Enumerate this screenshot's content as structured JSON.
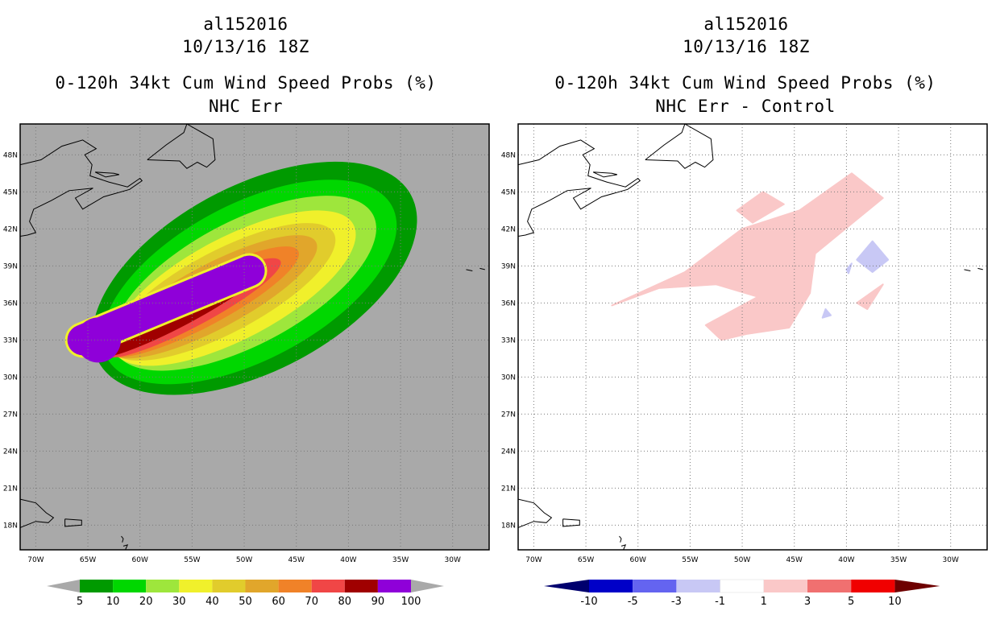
{
  "panels": [
    {
      "storm_id": "al152016",
      "datetime": "10/13/16 18Z",
      "title": "0-120h 34kt Cum Wind Speed Probs (%)",
      "subtitle": "NHC Err"
    },
    {
      "storm_id": "al152016",
      "datetime": "10/13/16 18Z",
      "title": "0-120h 34kt Cum Wind Speed Probs (%)",
      "subtitle": "NHC Err - Control"
    }
  ],
  "chart_data": [
    {
      "type": "heatmap",
      "title": "0-120h 34kt Cum Wind Speed Probs (%)",
      "subtitle": "NHC Err",
      "lon_ticks": [
        "70W",
        "65W",
        "60W",
        "55W",
        "50W",
        "45W",
        "40W",
        "35W",
        "30W"
      ],
      "lat_ticks": [
        "18N",
        "21N",
        "24N",
        "27N",
        "30N",
        "33N",
        "36N",
        "39N",
        "42N",
        "45N",
        "48N"
      ],
      "xlim": [
        -71.5,
        -26.5
      ],
      "ylim": [
        16.0,
        50.5
      ],
      "background_color": "#a9a9a9",
      "colorbar": {
        "labels": [
          "5",
          "10",
          "20",
          "30",
          "40",
          "50",
          "60",
          "70",
          "80",
          "90",
          "100"
        ],
        "colors": [
          "#009a00",
          "#00d700",
          "#9ee63c",
          "#f0f02b",
          "#e1cc2c",
          "#e1a62b",
          "#f08228",
          "#f04646",
          "#a00000",
          "#8f00d9"
        ],
        "end_color": "#a9a9a9"
      },
      "contours": [
        {
          "level": 5,
          "color": "#009a00",
          "center": [
            -49.0,
            38.0
          ],
          "rx": 17.0,
          "ry": 7.5,
          "rot": 28
        },
        {
          "level": 10,
          "color": "#00d700",
          "center": [
            -49.5,
            37.7
          ],
          "rx": 15.5,
          "ry": 6.3,
          "rot": 28
        },
        {
          "level": 20,
          "color": "#9ee63c",
          "center": [
            -50.0,
            37.6
          ],
          "rx": 14.0,
          "ry": 5.0,
          "rot": 28
        },
        {
          "level": 30,
          "color": "#f0f02b",
          "center": [
            -51.0,
            37.2
          ],
          "rx": 13.0,
          "ry": 4.1,
          "rot": 28
        },
        {
          "level": 40,
          "color": "#e1cc2c",
          "center": [
            -52.0,
            36.9
          ],
          "rx": 12.0,
          "ry": 3.3,
          "rot": 28
        },
        {
          "level": 50,
          "color": "#e1a62b",
          "center": [
            -53.0,
            36.5
          ],
          "rx": 11.2,
          "ry": 2.6,
          "rot": 28
        },
        {
          "level": 60,
          "color": "#f08228",
          "center": [
            -54.0,
            36.1
          ],
          "rx": 10.4,
          "ry": 2.0,
          "rot": 28
        },
        {
          "level": 70,
          "color": "#f04646",
          "center": [
            -55.0,
            35.6
          ],
          "rx": 9.6,
          "ry": 1.5,
          "rot": 28
        },
        {
          "level": 80,
          "color": "#a00000",
          "center": [
            -56.0,
            35.3
          ],
          "rx": 9.0,
          "ry": 1.1,
          "rot": 28
        }
      ]
    },
    {
      "type": "heatmap",
      "title": "0-120h 34kt Cum Wind Speed Probs (%)",
      "subtitle": "NHC Err - Control",
      "lon_ticks": [
        "70W",
        "65W",
        "60W",
        "55W",
        "50W",
        "45W",
        "40W",
        "35W",
        "30W"
      ],
      "lat_ticks": [
        "18N",
        "21N",
        "24N",
        "27N",
        "30N",
        "33N",
        "36N",
        "39N",
        "42N",
        "45N",
        "48N"
      ],
      "xlim": [
        -71.5,
        -26.5
      ],
      "ylim": [
        16.0,
        50.5
      ],
      "background_color": "#ffffff",
      "colorbar": {
        "labels": [
          "-10",
          "-5",
          "-3",
          "-1",
          "1",
          "3",
          "5",
          "10"
        ],
        "colors": [
          "#0000c8",
          "#6464f0",
          "#c8c8f5",
          "#ffffff",
          "#fac8c8",
          "#f07070",
          "#f00000"
        ],
        "end_colors": [
          "#00006e",
          "#6e0000"
        ]
      },
      "regions": [
        {
          "sign": "positive",
          "bin": "1 to 3",
          "color": "#fac8c8",
          "points": [
            [
              -62.5,
              35.8
            ],
            [
              -55.5,
              38.5
            ],
            [
              -50.0,
              42.0
            ],
            [
              -44.5,
              43.5
            ],
            [
              -39.5,
              46.5
            ],
            [
              -36.5,
              44.5
            ],
            [
              -43.0,
              40.0
            ],
            [
              -43.5,
              36.8
            ],
            [
              -45.5,
              34.0
            ],
            [
              -49.5,
              33.5
            ],
            [
              -52.0,
              33.0
            ],
            [
              -53.5,
              34.2
            ],
            [
              -48.5,
              36.5
            ],
            [
              -52.5,
              37.5
            ],
            [
              -58.0,
              37.2
            ]
          ]
        },
        {
          "sign": "positive",
          "bin": "1 to 3",
          "color": "#fac8c8",
          "points": [
            [
              -50.5,
              43.5
            ],
            [
              -48.0,
              45.0
            ],
            [
              -46.0,
              44.0
            ],
            [
              -49.0,
              42.5
            ]
          ]
        },
        {
          "sign": "positive",
          "bin": "1 to 3",
          "color": "#fac8c8",
          "points": [
            [
              -39.0,
              36.0
            ],
            [
              -36.5,
              37.5
            ],
            [
              -38.0,
              35.5
            ]
          ]
        },
        {
          "sign": "negative",
          "bin": "-1 to -3",
          "color": "#c8c8f5",
          "points": [
            [
              -37.5,
              38.5
            ],
            [
              -36.0,
              39.5
            ],
            [
              -37.5,
              41.0
            ],
            [
              -39.0,
              39.5
            ]
          ]
        },
        {
          "sign": "negative",
          "bin": "-1 to -3",
          "color": "#c8c8f5",
          "points": [
            [
              -40.0,
              38.7
            ],
            [
              -39.5,
              39.2
            ],
            [
              -39.8,
              38.4
            ]
          ]
        },
        {
          "sign": "negative",
          "bin": "-1 to -3",
          "color": "#c8c8f5",
          "points": [
            [
              -42.0,
              35.5
            ],
            [
              -41.5,
              35.0
            ],
            [
              -42.3,
              34.8
            ]
          ]
        }
      ]
    }
  ]
}
